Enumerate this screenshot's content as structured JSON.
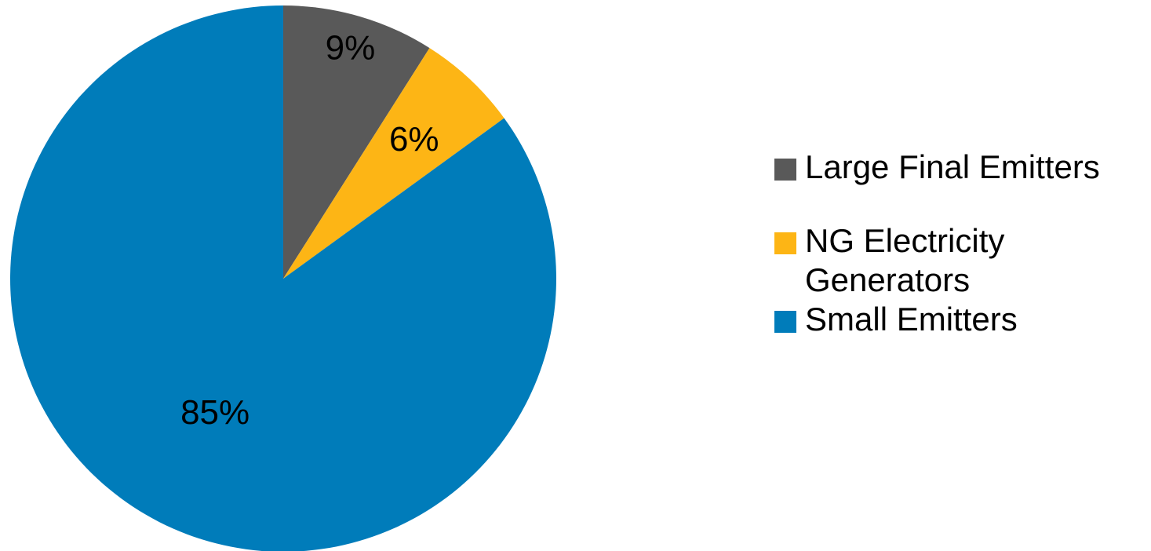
{
  "chart_data": {
    "type": "pie",
    "categories": [
      "Large Final Emitters",
      "NG Electricity Generators",
      "Small Emitters"
    ],
    "values": [
      9,
      6,
      85
    ],
    "labels": [
      "9%",
      "6%",
      "85%"
    ],
    "colors": [
      "#595959",
      "#FDB515",
      "#007CBA"
    ],
    "legend_position": "right"
  },
  "legend": {
    "items": [
      {
        "label": "Large Final Emitters",
        "color": "#595959"
      },
      {
        "label": "NG Electricity Generators",
        "color": "#FDB515"
      },
      {
        "label": "Small Emitters",
        "color": "#007CBA"
      }
    ]
  }
}
